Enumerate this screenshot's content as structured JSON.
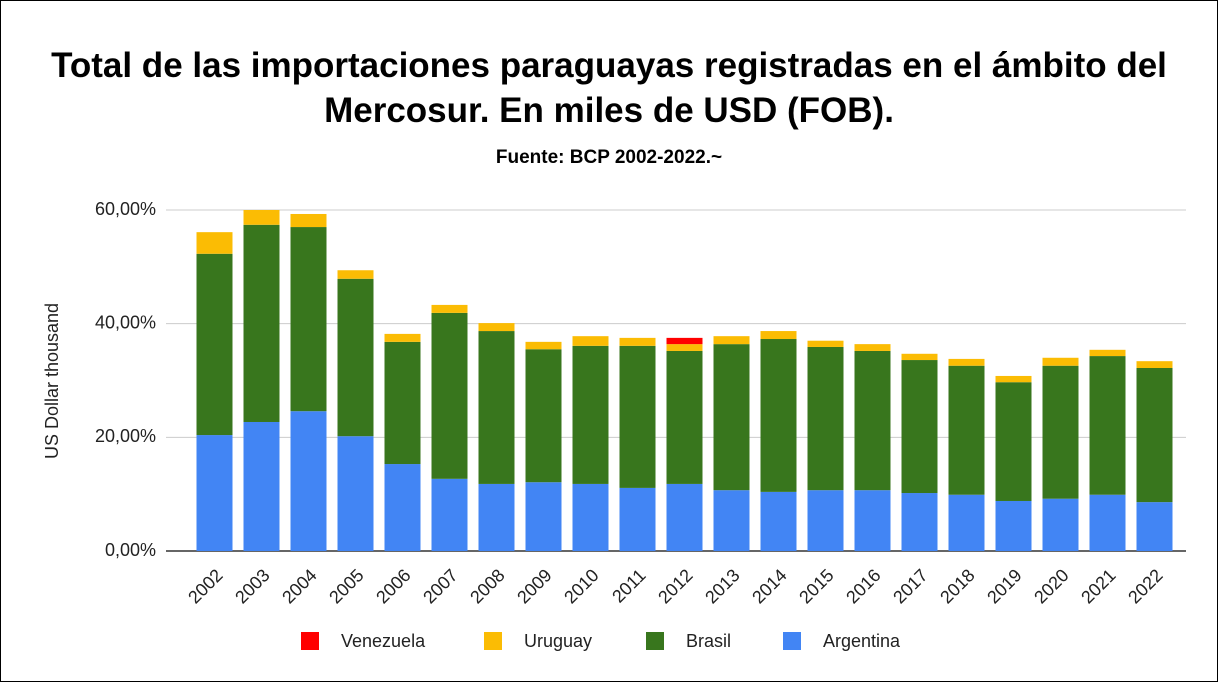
{
  "chart_data": {
    "type": "stacked_bar",
    "title": "Total de las importaciones paraguayas registradas en el ámbito del Mercosur. En miles de USD (FOB).",
    "subtitle": "Fuente: BCP 2002-2022.~",
    "y_label": "US Dollar thousand",
    "categories": [
      "2002",
      "2003",
      "2004",
      "2005",
      "2006",
      "2007",
      "2008",
      "2009",
      "2010",
      "2011",
      "2012",
      "2013",
      "2014",
      "2015",
      "2016",
      "2017",
      "2018",
      "2019",
      "2020",
      "2021",
      "2022"
    ],
    "series": [
      {
        "name": "Venezuela",
        "color": "#ff0000",
        "values": [
          0,
          0,
          0,
          0,
          0,
          0,
          0,
          0,
          0,
          0,
          1.1,
          0,
          0,
          0,
          0,
          0,
          0,
          0,
          0,
          0,
          0
        ]
      },
      {
        "name": "Uruguay",
        "color": "#fbbc04",
        "values": [
          3.8,
          2.6,
          2.3,
          1.5,
          1.4,
          1.4,
          1.4,
          1.3,
          1.7,
          1.4,
          1.2,
          1.4,
          1.4,
          1.1,
          1.2,
          1.1,
          1.2,
          1.1,
          1.4,
          1.1,
          1.2
        ]
      },
      {
        "name": "Brasil",
        "color": "#38761d",
        "values": [
          31.9,
          34.7,
          32.4,
          27.7,
          21.5,
          29.2,
          26.9,
          23.4,
          24.3,
          25.0,
          23.4,
          25.7,
          26.9,
          25.2,
          24.5,
          23.4,
          22.7,
          20.9,
          23.4,
          24.4,
          23.6
        ]
      },
      {
        "name": "Argentina",
        "color": "#4285f4",
        "values": [
          20.4,
          22.7,
          24.6,
          20.2,
          15.3,
          12.7,
          11.8,
          12.1,
          11.8,
          11.1,
          11.8,
          10.7,
          10.4,
          10.7,
          10.7,
          10.2,
          9.9,
          8.8,
          9.2,
          9.9,
          8.6
        ]
      }
    ],
    "ylim": [
      0,
      60
    ],
    "yticks": [
      {
        "value": 0,
        "label": "0,00%"
      },
      {
        "value": 20,
        "label": "20,00%"
      },
      {
        "value": 40,
        "label": "40,00%"
      },
      {
        "value": 60,
        "label": "60,00%"
      }
    ],
    "grid": true,
    "legend": "bottom"
  }
}
